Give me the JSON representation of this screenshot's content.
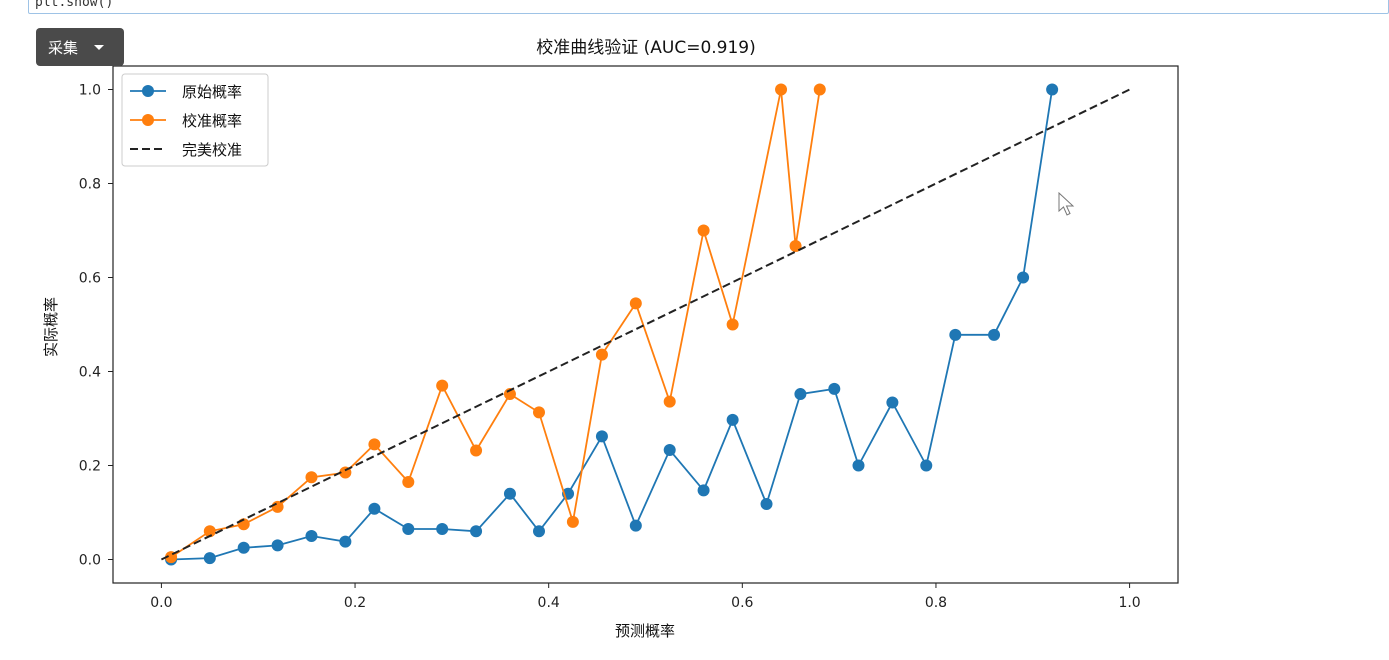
{
  "toolbar": {
    "collect_label": "采集"
  },
  "code_cell": {
    "text": "plt.show()"
  },
  "chart_data": {
    "type": "line",
    "title": "校准曲线验证 (AUC=0.919)",
    "xlabel": "预测概率",
    "ylabel": "实际概率",
    "xlim": [
      -0.05,
      1.05
    ],
    "ylim": [
      -0.05,
      1.05
    ],
    "xticks": [
      "0.0",
      "0.2",
      "0.4",
      "0.6",
      "0.8",
      "1.0"
    ],
    "yticks": [
      "0.0",
      "0.2",
      "0.4",
      "0.6",
      "0.8",
      "1.0"
    ],
    "grid": false,
    "legend_position": "upper-left",
    "series": [
      {
        "name": "原始概率",
        "color": "#1f77b4",
        "marker": "circle",
        "x": [
          0.01,
          0.05,
          0.085,
          0.12,
          0.155,
          0.19,
          0.22,
          0.255,
          0.29,
          0.325,
          0.36,
          0.39,
          0.42,
          0.455,
          0.49,
          0.525,
          0.56,
          0.59,
          0.625,
          0.66,
          0.695,
          0.72,
          0.755,
          0.79,
          0.82,
          0.86,
          0.89,
          0.92
        ],
        "y": [
          0.0,
          0.003,
          0.025,
          0.03,
          0.05,
          0.038,
          0.108,
          0.065,
          0.065,
          0.06,
          0.14,
          0.06,
          0.14,
          0.262,
          0.072,
          0.233,
          0.147,
          0.297,
          0.118,
          0.352,
          0.363,
          0.2,
          0.334,
          0.2,
          0.478,
          0.478,
          0.6,
          1.0
        ]
      },
      {
        "name": "校准概率",
        "color": "#ff7f0e",
        "marker": "circle",
        "x": [
          0.01,
          0.05,
          0.085,
          0.12,
          0.155,
          0.19,
          0.22,
          0.255,
          0.29,
          0.325,
          0.36,
          0.39,
          0.425,
          0.455,
          0.49,
          0.525,
          0.56,
          0.59,
          0.64,
          0.655,
          0.68
        ],
        "y": [
          0.005,
          0.06,
          0.075,
          0.112,
          0.175,
          0.185,
          0.245,
          0.165,
          0.37,
          0.232,
          0.352,
          0.313,
          0.08,
          0.436,
          0.545,
          0.336,
          0.7,
          0.5,
          1.0,
          0.667,
          1.0
        ]
      },
      {
        "name": "完美校准",
        "color": "#222222",
        "dashed": true,
        "x": [
          0.0,
          1.0
        ],
        "y": [
          0.0,
          1.0
        ]
      }
    ]
  }
}
